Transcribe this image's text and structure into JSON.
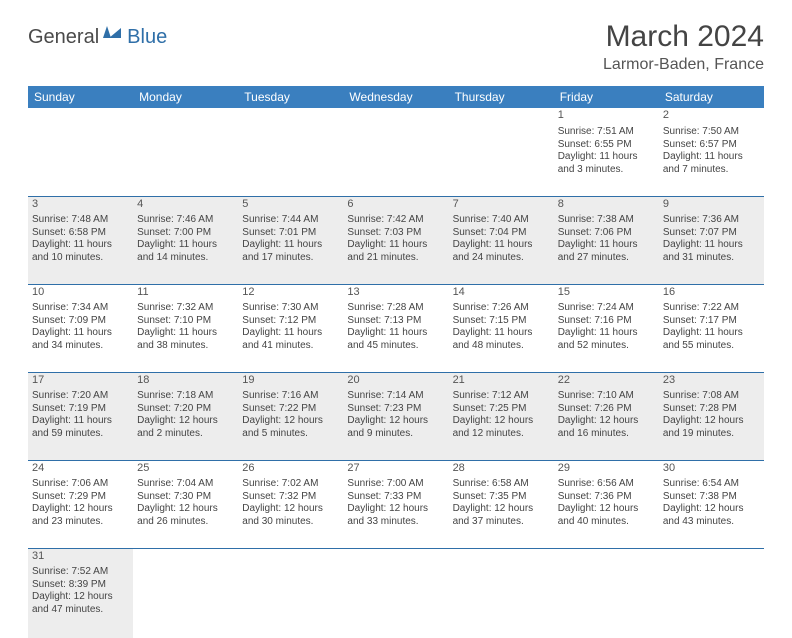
{
  "logo": {
    "dark": "General",
    "blue": "Blue"
  },
  "title": "March 2024",
  "location": "Larmor-Baden, France",
  "colors": {
    "header_bg": "#3a7fbf",
    "header_fg": "#ffffff",
    "rule": "#2f6fa8",
    "shade": "#ededed",
    "text": "#444444",
    "logo_blue": "#2f6fa8",
    "logo_dark": "#4a4a4a"
  },
  "day_headers": [
    "Sunday",
    "Monday",
    "Tuesday",
    "Wednesday",
    "Thursday",
    "Friday",
    "Saturday"
  ],
  "weeks": [
    {
      "shaded": false,
      "days": [
        null,
        null,
        null,
        null,
        null,
        {
          "n": "1",
          "sunrise": "7:51 AM",
          "sunset": "6:55 PM",
          "daylight": "11 hours and 3 minutes."
        },
        {
          "n": "2",
          "sunrise": "7:50 AM",
          "sunset": "6:57 PM",
          "daylight": "11 hours and 7 minutes."
        }
      ]
    },
    {
      "shaded": true,
      "days": [
        {
          "n": "3",
          "sunrise": "7:48 AM",
          "sunset": "6:58 PM",
          "daylight": "11 hours and 10 minutes."
        },
        {
          "n": "4",
          "sunrise": "7:46 AM",
          "sunset": "7:00 PM",
          "daylight": "11 hours and 14 minutes."
        },
        {
          "n": "5",
          "sunrise": "7:44 AM",
          "sunset": "7:01 PM",
          "daylight": "11 hours and 17 minutes."
        },
        {
          "n": "6",
          "sunrise": "7:42 AM",
          "sunset": "7:03 PM",
          "daylight": "11 hours and 21 minutes."
        },
        {
          "n": "7",
          "sunrise": "7:40 AM",
          "sunset": "7:04 PM",
          "daylight": "11 hours and 24 minutes."
        },
        {
          "n": "8",
          "sunrise": "7:38 AM",
          "sunset": "7:06 PM",
          "daylight": "11 hours and 27 minutes."
        },
        {
          "n": "9",
          "sunrise": "7:36 AM",
          "sunset": "7:07 PM",
          "daylight": "11 hours and 31 minutes."
        }
      ]
    },
    {
      "shaded": false,
      "days": [
        {
          "n": "10",
          "sunrise": "7:34 AM",
          "sunset": "7:09 PM",
          "daylight": "11 hours and 34 minutes."
        },
        {
          "n": "11",
          "sunrise": "7:32 AM",
          "sunset": "7:10 PM",
          "daylight": "11 hours and 38 minutes."
        },
        {
          "n": "12",
          "sunrise": "7:30 AM",
          "sunset": "7:12 PM",
          "daylight": "11 hours and 41 minutes."
        },
        {
          "n": "13",
          "sunrise": "7:28 AM",
          "sunset": "7:13 PM",
          "daylight": "11 hours and 45 minutes."
        },
        {
          "n": "14",
          "sunrise": "7:26 AM",
          "sunset": "7:15 PM",
          "daylight": "11 hours and 48 minutes."
        },
        {
          "n": "15",
          "sunrise": "7:24 AM",
          "sunset": "7:16 PM",
          "daylight": "11 hours and 52 minutes."
        },
        {
          "n": "16",
          "sunrise": "7:22 AM",
          "sunset": "7:17 PM",
          "daylight": "11 hours and 55 minutes."
        }
      ]
    },
    {
      "shaded": true,
      "days": [
        {
          "n": "17",
          "sunrise": "7:20 AM",
          "sunset": "7:19 PM",
          "daylight": "11 hours and 59 minutes."
        },
        {
          "n": "18",
          "sunrise": "7:18 AM",
          "sunset": "7:20 PM",
          "daylight": "12 hours and 2 minutes."
        },
        {
          "n": "19",
          "sunrise": "7:16 AM",
          "sunset": "7:22 PM",
          "daylight": "12 hours and 5 minutes."
        },
        {
          "n": "20",
          "sunrise": "7:14 AM",
          "sunset": "7:23 PM",
          "daylight": "12 hours and 9 minutes."
        },
        {
          "n": "21",
          "sunrise": "7:12 AM",
          "sunset": "7:25 PM",
          "daylight": "12 hours and 12 minutes."
        },
        {
          "n": "22",
          "sunrise": "7:10 AM",
          "sunset": "7:26 PM",
          "daylight": "12 hours and 16 minutes."
        },
        {
          "n": "23",
          "sunrise": "7:08 AM",
          "sunset": "7:28 PM",
          "daylight": "12 hours and 19 minutes."
        }
      ]
    },
    {
      "shaded": false,
      "days": [
        {
          "n": "24",
          "sunrise": "7:06 AM",
          "sunset": "7:29 PM",
          "daylight": "12 hours and 23 minutes."
        },
        {
          "n": "25",
          "sunrise": "7:04 AM",
          "sunset": "7:30 PM",
          "daylight": "12 hours and 26 minutes."
        },
        {
          "n": "26",
          "sunrise": "7:02 AM",
          "sunset": "7:32 PM",
          "daylight": "12 hours and 30 minutes."
        },
        {
          "n": "27",
          "sunrise": "7:00 AM",
          "sunset": "7:33 PM",
          "daylight": "12 hours and 33 minutes."
        },
        {
          "n": "28",
          "sunrise": "6:58 AM",
          "sunset": "7:35 PM",
          "daylight": "12 hours and 37 minutes."
        },
        {
          "n": "29",
          "sunrise": "6:56 AM",
          "sunset": "7:36 PM",
          "daylight": "12 hours and 40 minutes."
        },
        {
          "n": "30",
          "sunrise": "6:54 AM",
          "sunset": "7:38 PM",
          "daylight": "12 hours and 43 minutes."
        }
      ]
    },
    {
      "shaded": true,
      "last": true,
      "days": [
        {
          "n": "31",
          "sunrise": "7:52 AM",
          "sunset": "8:39 PM",
          "daylight": "12 hours and 47 minutes."
        },
        null,
        null,
        null,
        null,
        null,
        null
      ]
    }
  ]
}
